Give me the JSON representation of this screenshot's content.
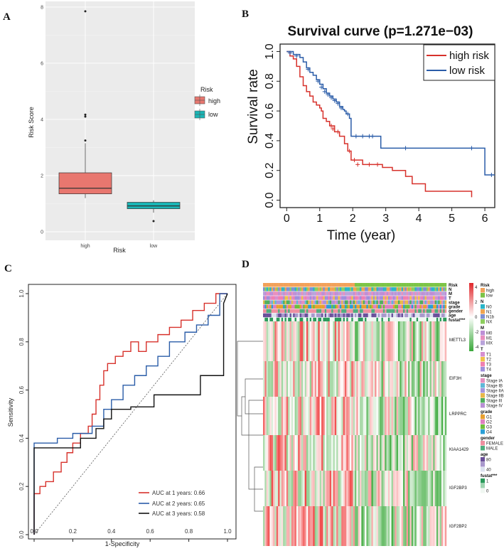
{
  "panels": {
    "A": "A",
    "B": "B",
    "C": "C",
    "D": "D"
  },
  "colors": {
    "high": "#e8776f",
    "low": "#1ab5b5",
    "risk_high": "#d7312b",
    "risk_low": "#2a5ca8",
    "auc1": "#d7312b",
    "auc2": "#2a5ca8",
    "auc3": "#111111"
  },
  "panelA": {
    "type": "box",
    "ylabel": "Risk Score",
    "xlabel": "Risk",
    "yticks": [
      0,
      2,
      4,
      6,
      8
    ],
    "ylim": [
      0,
      8.1
    ],
    "categories": [
      "high",
      "low"
    ],
    "legend": {
      "title": "Risk",
      "items": [
        "high",
        "low"
      ]
    },
    "boxes": [
      {
        "name": "high",
        "min": 1.2,
        "q1": 1.35,
        "median": 1.55,
        "q3": 2.1,
        "max": 3.15,
        "outliers": [
          3.25,
          4.1,
          4.17,
          7.85
        ]
      },
      {
        "name": "low",
        "min": 0.68,
        "q1": 0.82,
        "median": 0.92,
        "q3": 1.05,
        "max": 1.12,
        "outliers": [
          0.38
        ]
      }
    ]
  },
  "chart_data": {
    "type": "line",
    "title": "Survival curve (p=1.271e−03)",
    "xlabel": "Time (year)",
    "ylabel": "Survival rate",
    "xlim": [
      -0.2,
      6.3
    ],
    "ylim": [
      -0.05,
      1.05
    ],
    "xticks": [
      0,
      1,
      2,
      3,
      4,
      5,
      6
    ],
    "yticks": [
      "0.0",
      "0.2",
      "0.4",
      "0.6",
      "0.8",
      "1.0"
    ],
    "legend": [
      "high risk",
      "low risk"
    ],
    "series": [
      {
        "name": "high risk",
        "x": [
          0,
          0.1,
          0.2,
          0.3,
          0.4,
          0.5,
          0.6,
          0.7,
          0.8,
          0.9,
          1.0,
          1.05,
          1.1,
          1.2,
          1.3,
          1.45,
          1.6,
          1.75,
          1.85,
          1.95,
          2.3,
          2.9,
          3.2,
          3.6,
          3.8,
          4.2,
          5.6
        ],
        "y": [
          1.0,
          0.97,
          0.95,
          0.9,
          0.83,
          0.77,
          0.73,
          0.7,
          0.66,
          0.64,
          0.62,
          0.6,
          0.55,
          0.53,
          0.5,
          0.46,
          0.43,
          0.38,
          0.33,
          0.27,
          0.24,
          0.22,
          0.2,
          0.16,
          0.11,
          0.06,
          0.02
        ],
        "censors": [
          [
            1.35,
            0.5
          ],
          [
            1.4,
            0.48
          ],
          [
            1.55,
            0.46
          ],
          [
            1.9,
            0.33
          ],
          [
            2.05,
            0.27
          ],
          [
            2.15,
            0.24
          ],
          [
            2.5,
            0.24
          ],
          [
            2.75,
            0.24
          ]
        ]
      },
      {
        "name": "low risk",
        "x": [
          0,
          0.2,
          0.4,
          0.5,
          0.6,
          0.7,
          0.8,
          0.9,
          1.0,
          1.1,
          1.2,
          1.3,
          1.4,
          1.5,
          1.6,
          1.7,
          1.75,
          1.8,
          1.9,
          1.95,
          2.85,
          6.0,
          6.3
        ],
        "y": [
          1.0,
          0.98,
          0.96,
          0.93,
          0.89,
          0.86,
          0.84,
          0.81,
          0.78,
          0.75,
          0.72,
          0.7,
          0.68,
          0.66,
          0.63,
          0.61,
          0.6,
          0.58,
          0.55,
          0.43,
          0.35,
          0.17,
          0.17
        ],
        "censors": [
          [
            0.1,
            0.99
          ],
          [
            0.3,
            0.97
          ],
          [
            0.65,
            0.88
          ],
          [
            0.95,
            0.8
          ],
          [
            1.05,
            0.76
          ],
          [
            1.15,
            0.73
          ],
          [
            1.25,
            0.71
          ],
          [
            1.35,
            0.69
          ],
          [
            1.45,
            0.67
          ],
          [
            1.55,
            0.65
          ],
          [
            1.65,
            0.62
          ],
          [
            1.85,
            0.58
          ],
          [
            2.1,
            0.43
          ],
          [
            2.3,
            0.43
          ],
          [
            2.5,
            0.43
          ],
          [
            2.6,
            0.43
          ],
          [
            3.6,
            0.35
          ],
          [
            5.6,
            0.35
          ],
          [
            6.2,
            0.17
          ]
        ]
      }
    ]
  },
  "panelC": {
    "type": "roc",
    "xlabel": "1-Specificity",
    "ylabel": "Sensitivity",
    "ticks": [
      "0.0",
      "0.2",
      "0.4",
      "0.6",
      "0.8",
      "1.0"
    ],
    "legend": [
      "AUC at 1 years: 0.66",
      "AUC at 2 years: 0.65",
      "AUC at 3 years: 0.58"
    ],
    "curves": [
      {
        "name": "1 year",
        "x": [
          0,
          0,
          0.03,
          0.03,
          0.06,
          0.06,
          0.1,
          0.1,
          0.14,
          0.14,
          0.17,
          0.17,
          0.2,
          0.2,
          0.24,
          0.24,
          0.28,
          0.28,
          0.3,
          0.3,
          0.32,
          0.32,
          0.34,
          0.34,
          0.36,
          0.36,
          0.38,
          0.38,
          0.42,
          0.42,
          0.46,
          0.46,
          0.5,
          0.5,
          0.54,
          0.54,
          0.58,
          0.58,
          0.64,
          0.64,
          0.7,
          0.7,
          0.76,
          0.76,
          0.82,
          0.82,
          0.88,
          0.88,
          0.94,
          0.94,
          1.0
        ],
        "y": [
          0,
          0.17,
          0.17,
          0.2,
          0.2,
          0.22,
          0.22,
          0.26,
          0.26,
          0.3,
          0.3,
          0.34,
          0.34,
          0.38,
          0.38,
          0.42,
          0.42,
          0.45,
          0.45,
          0.5,
          0.5,
          0.56,
          0.56,
          0.62,
          0.62,
          0.68,
          0.68,
          0.71,
          0.71,
          0.74,
          0.74,
          0.76,
          0.76,
          0.8,
          0.8,
          0.76,
          0.76,
          0.8,
          0.8,
          0.83,
          0.83,
          0.86,
          0.86,
          0.89,
          0.89,
          0.93,
          0.93,
          0.96,
          0.96,
          1.0,
          1.0
        ]
      },
      {
        "name": "2 years",
        "x": [
          0,
          0,
          0.12,
          0.12,
          0.2,
          0.2,
          0.3,
          0.3,
          0.36,
          0.36,
          0.4,
          0.4,
          0.46,
          0.46,
          0.52,
          0.52,
          0.58,
          0.58,
          0.64,
          0.64,
          0.7,
          0.7,
          0.78,
          0.78,
          0.84,
          0.84,
          0.9,
          0.9,
          0.96,
          0.96,
          1.0
        ],
        "y": [
          0,
          0.38,
          0.38,
          0.4,
          0.4,
          0.42,
          0.42,
          0.45,
          0.45,
          0.52,
          0.52,
          0.56,
          0.56,
          0.62,
          0.62,
          0.66,
          0.66,
          0.7,
          0.7,
          0.74,
          0.74,
          0.8,
          0.8,
          0.84,
          0.84,
          0.87,
          0.87,
          0.91,
          0.91,
          1.0,
          1.0
        ]
      },
      {
        "name": "3 years",
        "x": [
          0,
          0,
          0.24,
          0.24,
          0.32,
          0.32,
          0.36,
          0.36,
          0.4,
          0.4,
          0.5,
          0.5,
          0.62,
          0.62,
          0.72,
          0.72,
          0.86,
          0.86,
          0.98,
          0.98,
          1.0
        ],
        "y": [
          0,
          0.36,
          0.36,
          0.4,
          0.4,
          0.44,
          0.44,
          0.48,
          0.48,
          0.52,
          0.52,
          0.53,
          0.53,
          0.58,
          0.58,
          0.58,
          0.58,
          0.66,
          0.66,
          0.96,
          1.0
        ]
      }
    ]
  },
  "panelD": {
    "type": "heatmap",
    "genes": [
      "METTL3",
      "EIF3H",
      "LRPPRC",
      "KIAA1429",
      "IGF2BP3",
      "IGF2BP2"
    ],
    "annotations": [
      "Risk",
      "N",
      "M",
      "T",
      "stage",
      "grade",
      "gender",
      "age",
      "fustat***"
    ],
    "colorbar_ticks": [
      "4",
      "2",
      "0",
      "-2",
      "-4"
    ],
    "legend": [
      {
        "title": "Risk",
        "items": [
          [
            "high",
            "#f2a15a"
          ],
          [
            "low",
            "#7cc447"
          ]
        ]
      },
      {
        "title": "N",
        "items": [
          [
            "N0",
            "#2ab5c8"
          ],
          [
            "N1",
            "#f0a450"
          ],
          [
            "N1b",
            "#7c8fd4"
          ],
          [
            "NX",
            "#8ccd5c"
          ]
        ]
      },
      {
        "title": "M",
        "items": [
          [
            "M0",
            "#bd8fd6"
          ],
          [
            "M1",
            "#e88fbf"
          ],
          [
            "MX",
            "#b9a3da"
          ]
        ]
      },
      {
        "title": "T",
        "items": [
          [
            "T1",
            "#d68fd0"
          ],
          [
            "T2",
            "#f0c24a"
          ],
          [
            "T3",
            "#f07fb0"
          ],
          [
            "T4",
            "#9f8fdc"
          ]
        ]
      },
      {
        "title": "stage",
        "items": [
          [
            "Stage IA",
            "#e48fbf"
          ],
          [
            "Stage IB",
            "#5fb8d8"
          ],
          [
            "Stage IIA",
            "#a695dc"
          ],
          [
            "Stage IIB",
            "#e8b84a"
          ],
          [
            "Stage III",
            "#4fae5e"
          ],
          [
            "Stage IV",
            "#b88fd4"
          ]
        ]
      },
      {
        "title": "grade",
        "items": [
          [
            "G1",
            "#e8a030"
          ],
          [
            "G2",
            "#e07fc0"
          ],
          [
            "G3",
            "#6ebf3c"
          ],
          [
            "G4",
            "#2a9fd6"
          ]
        ]
      },
      {
        "title": "gender",
        "items": [
          [
            "FEMALE",
            "#ef8fa0"
          ],
          [
            "MALE",
            "#4fae7e"
          ]
        ]
      },
      {
        "title": "age",
        "items": [
          [
            "80",
            "#6a4f9a"
          ],
          [
            "",
            "#a898cc"
          ],
          [
            "40",
            "#dde3f0"
          ]
        ]
      },
      {
        "title": "fustat***",
        "items": [
          [
            "1",
            "#2a9a5a"
          ],
          [
            "",
            "#9fd4b0"
          ],
          [
            "0",
            "#f0f7f2"
          ]
        ]
      }
    ]
  }
}
